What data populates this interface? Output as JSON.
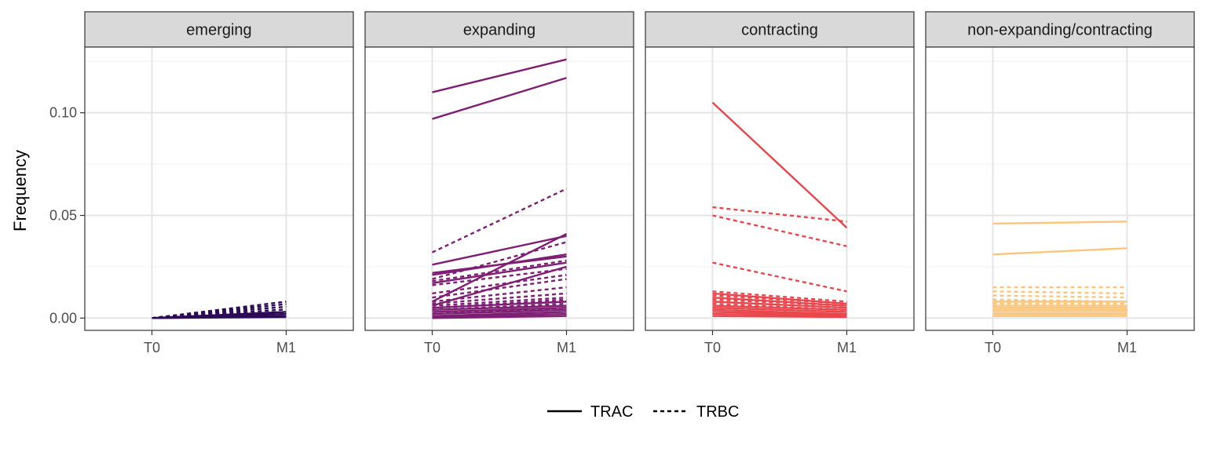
{
  "chart_data": {
    "type": "line",
    "ylabel": "Frequency",
    "xlabel": "",
    "x_categories": [
      "T0",
      "M1"
    ],
    "ylim": [
      -0.006,
      0.132
    ],
    "y_ticks": [
      0.0,
      0.05,
      0.1
    ],
    "y_tick_labels": [
      "0.00",
      "0.05",
      "0.10"
    ],
    "grid": true,
    "legend": {
      "position": "bottom",
      "entries": [
        {
          "label": "TRAC",
          "linetype": "solid"
        },
        {
          "label": "TRBC",
          "linetype": "dashed"
        }
      ]
    },
    "panels": [
      {
        "title": "emerging",
        "color": "#2d0a57",
        "series": [
          {
            "chain": "TRAC",
            "values": [
              0.0,
              0.003
            ]
          },
          {
            "chain": "TRAC",
            "values": [
              0.0,
              0.002
            ]
          },
          {
            "chain": "TRAC",
            "values": [
              0.0,
              0.001
            ]
          },
          {
            "chain": "TRAC",
            "values": [
              0.0,
              0.0005
            ]
          },
          {
            "chain": "TRBC",
            "values": [
              0.0,
              0.008
            ]
          },
          {
            "chain": "TRBC",
            "values": [
              0.0,
              0.0068
            ]
          },
          {
            "chain": "TRBC",
            "values": [
              0.0,
              0.0055
            ]
          },
          {
            "chain": "TRBC",
            "values": [
              0.0,
              0.0042
            ]
          },
          {
            "chain": "TRBC",
            "values": [
              0.0,
              0.003
            ]
          },
          {
            "chain": "TRBC",
            "values": [
              0.0,
              0.002
            ]
          }
        ]
      },
      {
        "title": "expanding",
        "color": "#7e1f73",
        "series": [
          {
            "chain": "TRAC",
            "values": [
              0.11,
              0.126
            ]
          },
          {
            "chain": "TRAC",
            "values": [
              0.097,
              0.117
            ]
          },
          {
            "chain": "TRAC",
            "values": [
              0.026,
              0.04
            ]
          },
          {
            "chain": "TRAC",
            "values": [
              0.022,
              0.03
            ]
          },
          {
            "chain": "TRAC",
            "values": [
              0.021,
              0.031
            ]
          },
          {
            "chain": "TRAC",
            "values": [
              0.017,
              0.027
            ]
          },
          {
            "chain": "TRAC",
            "values": [
              0.008,
              0.041
            ]
          },
          {
            "chain": "TRAC",
            "values": [
              0.006,
              0.025
            ]
          },
          {
            "chain": "TRAC",
            "values": [
              0.005,
              0.008
            ]
          },
          {
            "chain": "TRAC",
            "values": [
              0.004,
              0.006
            ]
          },
          {
            "chain": "TRAC",
            "values": [
              0.003,
              0.005
            ]
          },
          {
            "chain": "TRAC",
            "values": [
              0.002,
              0.004
            ]
          },
          {
            "chain": "TRAC",
            "values": [
              0.001,
              0.003
            ]
          },
          {
            "chain": "TRAC",
            "values": [
              0.0005,
              0.002
            ]
          },
          {
            "chain": "TRAC",
            "values": [
              0.0,
              0.001
            ]
          },
          {
            "chain": "TRBC",
            "values": [
              0.032,
              0.063
            ]
          },
          {
            "chain": "TRBC",
            "values": [
              0.019,
              0.037
            ]
          },
          {
            "chain": "TRBC",
            "values": [
              0.018,
              0.028
            ]
          },
          {
            "chain": "TRBC",
            "values": [
              0.016,
              0.024
            ]
          },
          {
            "chain": "TRBC",
            "values": [
              0.012,
              0.021
            ]
          },
          {
            "chain": "TRBC",
            "values": [
              0.01,
              0.019
            ]
          },
          {
            "chain": "TRBC",
            "values": [
              0.008,
              0.015
            ]
          },
          {
            "chain": "TRBC",
            "values": [
              0.007,
              0.012
            ]
          },
          {
            "chain": "TRBC",
            "values": [
              0.006,
              0.01
            ]
          },
          {
            "chain": "TRBC",
            "values": [
              0.005,
              0.009
            ]
          },
          {
            "chain": "TRBC",
            "values": [
              0.004,
              0.007
            ]
          },
          {
            "chain": "TRBC",
            "values": [
              0.002,
              0.005
            ]
          }
        ]
      },
      {
        "title": "contracting",
        "color": "#e8474d",
        "series": [
          {
            "chain": "TRAC",
            "values": [
              0.105,
              0.044
            ]
          },
          {
            "chain": "TRAC",
            "values": [
              0.012,
              0.007
            ]
          },
          {
            "chain": "TRAC",
            "values": [
              0.01,
              0.006
            ]
          },
          {
            "chain": "TRAC",
            "values": [
              0.008,
              0.005
            ]
          },
          {
            "chain": "TRAC",
            "values": [
              0.006,
              0.004
            ]
          },
          {
            "chain": "TRAC",
            "values": [
              0.005,
              0.003
            ]
          },
          {
            "chain": "TRAC",
            "values": [
              0.004,
              0.002
            ]
          },
          {
            "chain": "TRAC",
            "values": [
              0.003,
              0.0015
            ]
          },
          {
            "chain": "TRAC",
            "values": [
              0.002,
              0.001
            ]
          },
          {
            "chain": "TRAC",
            "values": [
              0.001,
              0.0005
            ]
          },
          {
            "chain": "TRBC",
            "values": [
              0.054,
              0.047
            ]
          },
          {
            "chain": "TRBC",
            "values": [
              0.05,
              0.035
            ]
          },
          {
            "chain": "TRBC",
            "values": [
              0.027,
              0.013
            ]
          },
          {
            "chain": "TRBC",
            "values": [
              0.013,
              0.008
            ]
          },
          {
            "chain": "TRBC",
            "values": [
              0.011,
              0.007
            ]
          },
          {
            "chain": "TRBC",
            "values": [
              0.009,
              0.006
            ]
          },
          {
            "chain": "TRBC",
            "values": [
              0.007,
              0.004
            ]
          },
          {
            "chain": "TRBC",
            "values": [
              0.005,
              0.003
            ]
          }
        ]
      },
      {
        "title": "non-expanding/contracting",
        "color": "#fcc57c",
        "series": [
          {
            "chain": "TRAC",
            "values": [
              0.046,
              0.047
            ]
          },
          {
            "chain": "TRAC",
            "values": [
              0.031,
              0.034
            ]
          },
          {
            "chain": "TRAC",
            "values": [
              0.008,
              0.008
            ]
          },
          {
            "chain": "TRAC",
            "values": [
              0.006,
              0.006
            ]
          },
          {
            "chain": "TRAC",
            "values": [
              0.005,
              0.005
            ]
          },
          {
            "chain": "TRAC",
            "values": [
              0.004,
              0.004
            ]
          },
          {
            "chain": "TRAC",
            "values": [
              0.003,
              0.003
            ]
          },
          {
            "chain": "TRAC",
            "values": [
              0.002,
              0.002
            ]
          },
          {
            "chain": "TRAC",
            "values": [
              0.001,
              0.001
            ]
          },
          {
            "chain": "TRBC",
            "values": [
              0.015,
              0.015
            ]
          },
          {
            "chain": "TRBC",
            "values": [
              0.013,
              0.012
            ]
          },
          {
            "chain": "TRBC",
            "values": [
              0.011,
              0.01
            ]
          },
          {
            "chain": "TRBC",
            "values": [
              0.009,
              0.008
            ]
          },
          {
            "chain": "TRBC",
            "values": [
              0.007,
              0.007
            ]
          },
          {
            "chain": "TRBC",
            "values": [
              0.006,
              0.006
            ]
          }
        ]
      }
    ]
  }
}
